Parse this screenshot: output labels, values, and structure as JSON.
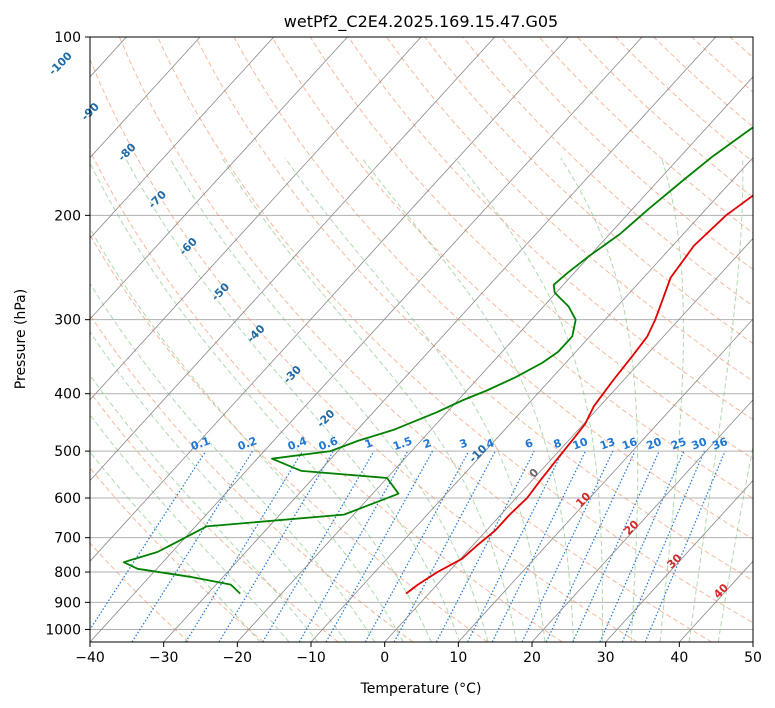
{
  "chart_data": {
    "type": "line",
    "chart_kind": "skew-t log-p diagram",
    "title": "wetPf2_C2E4.2025.169.15.47.G05",
    "xlabel": "Temperature (°C)",
    "ylabel": "Pressure (hPa)",
    "xlim": [
      -40,
      50
    ],
    "ylim": [
      1050,
      100
    ],
    "y_scale": "log",
    "x_ticks": [
      "−40",
      "−30",
      "−20",
      "−10",
      "0",
      "10",
      "20",
      "30",
      "40",
      "50"
    ],
    "x_tick_values": [
      -40,
      -30,
      -20,
      -10,
      0,
      10,
      20,
      30,
      40,
      50
    ],
    "y_ticks": [
      "100",
      "200",
      "300",
      "400",
      "500",
      "600",
      "700",
      "800",
      "900",
      "1000"
    ],
    "y_tick_values": [
      100,
      200,
      300,
      400,
      500,
      600,
      700,
      800,
      900,
      1000
    ],
    "grid": true,
    "series": [
      {
        "color": "#e00000",
        "x": [
          4.7,
          4.4,
          3.2,
          1.3,
          -1.3,
          -3.6,
          -5.3,
          -6.5,
          -7.1,
          -6.3,
          -4.5,
          -3.2,
          -2.2,
          -1.8,
          -1.4,
          -0.8,
          0.2,
          0.5,
          0.8,
          1.1,
          1.5,
          1.2,
          1.2,
          0.6,
          0.2,
          -1.5,
          -2.6,
          -3.1
        ],
        "y": [
          100,
          120,
          135,
          148,
          160,
          172,
          185,
          200,
          225,
          255,
          280,
          300,
          320,
          345,
          380,
          420,
          450,
          480,
          520,
          560,
          600,
          640,
          680,
          720,
          760,
          800,
          840,
          870
        ]
      },
      {
        "color": "#008000",
        "x": [
          -6.2,
          -11.1,
          -14.1,
          -15.7,
          -16.7,
          -17.8,
          -18.6,
          -20.1,
          -20.9,
          -21.3,
          -20.2,
          -16.6,
          -14.0,
          -12.4,
          -12.4,
          -13.2,
          -15.0,
          -17.3,
          -19.3,
          -21.4,
          -25.0,
          -28.5,
          -31.0,
          -38.0,
          -32.5,
          -20.0,
          -16.5,
          -21.3,
          -38.5,
          -40.5,
          -42.0,
          -45.3,
          -42.6,
          -34.5,
          -28.0,
          -25.6
        ],
        "y": [
          100,
          122,
          145,
          160,
          175,
          195,
          215,
          235,
          250,
          262,
          270,
          285,
          300,
          320,
          340,
          355,
          375,
          395,
          410,
          430,
          460,
          480,
          500,
          515,
          540,
          555,
          590,
          640,
          670,
          710,
          740,
          770,
          790,
          815,
          840,
          870
        ]
      }
    ],
    "dry_adiabat_labels": [
      "-100",
      "-90",
      "-80",
      "-70",
      "-60",
      "-50",
      "-40",
      "-30",
      "-20",
      "-10",
      "0",
      "10",
      "20",
      "30",
      "40"
    ],
    "mixing_ratio_labels": [
      "0.1",
      "0.2",
      "0.4",
      "0.6",
      "1",
      "1.5",
      "2",
      "3",
      "4",
      "6",
      "8",
      "10",
      "13",
      "16",
      "20",
      "25",
      "30",
      "36"
    ],
    "mixing_ratio_values": [
      0.1,
      0.2,
      0.4,
      0.6,
      1,
      1.5,
      2,
      3,
      4,
      6,
      8,
      10,
      13,
      16,
      20,
      25,
      30,
      36
    ],
    "colors": {
      "temperature": "#e00000",
      "dewpoint": "#008000",
      "dry_adiabat": "#f08a5d",
      "moist_adiabat": "#7cbf7c",
      "mixing_ratio": "#1f77d4",
      "isotherm": "#888888",
      "cold_label": "#1f6aa5",
      "warm_label": "#d62728"
    }
  }
}
